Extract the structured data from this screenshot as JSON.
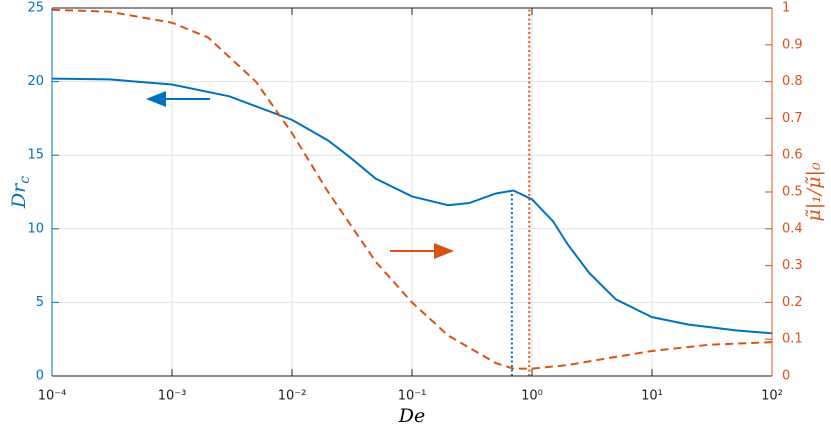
{
  "chart_data": {
    "type": "line",
    "xlabel": "De",
    "ylabel": "Dr",
    "ylabel_sub": "c",
    "y2label": "μ̃|₁/μ̃|₀",
    "xscale": "log",
    "grid": true,
    "xlim": [
      0.0001,
      100
    ],
    "xticks": [
      {
        "value": 0.0001,
        "label": "10⁻⁴"
      },
      {
        "value": 0.001,
        "label": "10⁻³"
      },
      {
        "value": 0.01,
        "label": "10⁻²"
      },
      {
        "value": 0.1,
        "label": "10⁻¹"
      },
      {
        "value": 1,
        "label": "10⁰"
      },
      {
        "value": 10,
        "label": "10¹"
      },
      {
        "value": 100,
        "label": "10²"
      }
    ],
    "ylim": [
      0,
      25
    ],
    "yticks": [
      0,
      5,
      10,
      15,
      20,
      25
    ],
    "ycolor": "#0072bd",
    "y2lim": [
      0,
      1
    ],
    "y2ticks": [
      0,
      0.1,
      0.2,
      0.3,
      0.4,
      0.5,
      0.6,
      0.7,
      0.8,
      0.9,
      1
    ],
    "y2color": "#d95319",
    "series": [
      {
        "color": "#0072bd",
        "dash": false,
        "x": [
          0.0001,
          0.0003,
          0.001,
          0.003,
          0.01,
          0.02,
          0.03,
          0.05,
          0.1,
          0.2,
          0.3,
          0.5,
          0.7,
          1,
          1.5,
          2,
          3,
          5,
          10,
          20,
          50,
          100
        ],
        "values": [
          20.2,
          20.15,
          19.8,
          19.0,
          17.4,
          16.0,
          14.9,
          13.4,
          12.2,
          11.6,
          11.75,
          12.4,
          12.6,
          12.0,
          10.5,
          8.9,
          7.0,
          5.2,
          4.0,
          3.5,
          3.1,
          2.9
        ]
      },
      {
        "color": "#d95319",
        "dash": true,
        "axis": "y2",
        "x": [
          0.0001,
          0.0003,
          0.001,
          0.002,
          0.005,
          0.01,
          0.02,
          0.05,
          0.1,
          0.2,
          0.5,
          0.7,
          1,
          2,
          5,
          10,
          30,
          100
        ],
        "values": [
          0.995,
          0.99,
          0.96,
          0.92,
          0.8,
          0.66,
          0.5,
          0.31,
          0.2,
          0.11,
          0.035,
          0.02,
          0.02,
          0.03,
          0.052,
          0.068,
          0.085,
          0.092
        ]
      }
    ],
    "vlines": [
      {
        "x": 0.68,
        "ymax": 12.6,
        "color": "#0072bd"
      },
      {
        "x": 0.95,
        "ymax": 1,
        "color": "#d95319",
        "axis": "y2"
      }
    ]
  }
}
